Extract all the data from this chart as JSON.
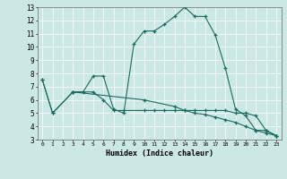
{
  "title": "",
  "xlabel": "Humidex (Indice chaleur)",
  "ylabel": "",
  "xlim": [
    -0.5,
    23.5
  ],
  "ylim": [
    3,
    13
  ],
  "xticks": [
    0,
    1,
    2,
    3,
    4,
    5,
    6,
    7,
    8,
    9,
    10,
    11,
    12,
    13,
    14,
    15,
    16,
    17,
    18,
    19,
    20,
    21,
    22,
    23
  ],
  "yticks": [
    3,
    4,
    5,
    6,
    7,
    8,
    9,
    10,
    11,
    12,
    13
  ],
  "bg_color": "#cce8e5",
  "line_color": "#1a6b5e",
  "grid_color": "#ffffff",
  "series": [
    {
      "x": [
        0,
        1,
        3,
        4,
        5,
        6,
        7,
        8,
        9,
        10,
        11,
        12,
        13,
        14,
        15,
        16,
        17,
        18,
        19,
        20,
        21,
        22,
        23
      ],
      "y": [
        7.5,
        5.0,
        6.6,
        6.6,
        7.8,
        7.8,
        5.3,
        5.0,
        10.2,
        11.2,
        11.2,
        11.7,
        12.3,
        13.0,
        12.3,
        12.3,
        10.9,
        8.4,
        5.3,
        4.8,
        3.7,
        3.7,
        3.3
      ]
    },
    {
      "x": [
        0,
        1,
        3,
        5,
        6,
        7,
        8,
        10,
        11,
        12,
        13,
        14,
        15,
        16,
        17,
        18,
        19,
        20,
        21,
        22,
        23
      ],
      "y": [
        7.5,
        5.0,
        6.6,
        6.6,
        6.0,
        5.2,
        5.2,
        5.2,
        5.2,
        5.2,
        5.2,
        5.2,
        5.2,
        5.2,
        5.2,
        5.2,
        5.0,
        5.0,
        4.8,
        3.7,
        3.3
      ]
    },
    {
      "x": [
        3,
        10,
        13,
        14,
        15,
        16,
        17,
        18,
        19,
        20,
        21,
        22,
        23
      ],
      "y": [
        6.6,
        6.0,
        5.5,
        5.2,
        5.0,
        4.9,
        4.7,
        4.5,
        4.3,
        4.0,
        3.7,
        3.5,
        3.3
      ]
    }
  ]
}
